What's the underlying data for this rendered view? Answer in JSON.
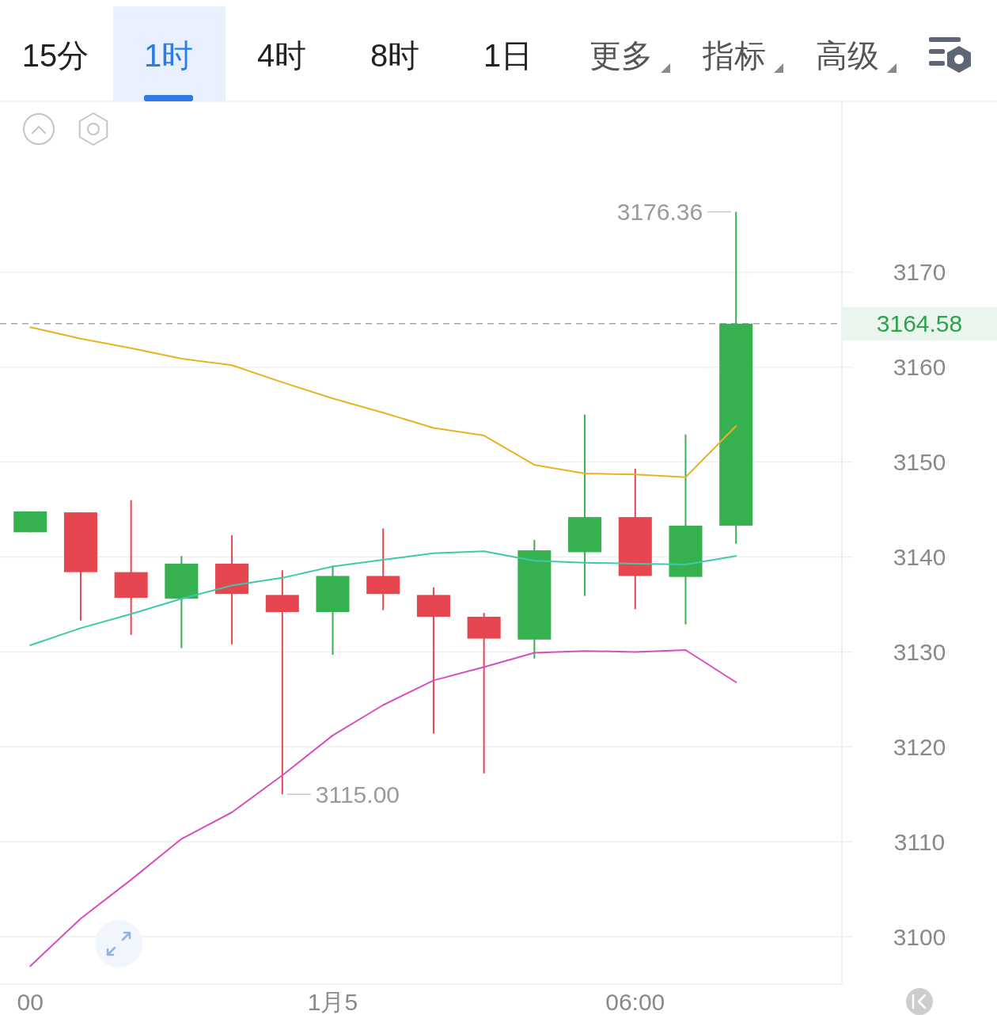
{
  "chart_data": {
    "type": "candlestick",
    "x": [
      "--01-04T18:00",
      "--01-04T19:00",
      "--01-04T20:00",
      "--01-04T21:00",
      "--01-04T22:00",
      "--01-04T23:00",
      "--01-05T00:00",
      "--01-05T01:00",
      "--01-05T02:00",
      "--01-05T03:00",
      "--01-05T04:00",
      "--01-05T05:00",
      "--01-05T06:00",
      "--01-05T07:00",
      "--01-05T08:00"
    ],
    "ohlc": [
      [
        3142.6,
        3144.8,
        3142.6,
        3144.8
      ],
      [
        3144.7,
        3144.7,
        3133.3,
        3138.4
      ],
      [
        3138.4,
        3146.0,
        3131.8,
        3135.7
      ],
      [
        3135.6,
        3140.1,
        3130.4,
        3139.3
      ],
      [
        3139.3,
        3142.3,
        3130.8,
        3136.1
      ],
      [
        3136.0,
        3138.6,
        3115.0,
        3134.2
      ],
      [
        3134.2,
        3139.1,
        3129.7,
        3138.0
      ],
      [
        3138.0,
        3143.0,
        3134.4,
        3136.1
      ],
      [
        3136.0,
        3136.8,
        3121.4,
        3133.7
      ],
      [
        3133.7,
        3134.1,
        3117.2,
        3131.4
      ],
      [
        3131.3,
        3141.8,
        3129.3,
        3140.7
      ],
      [
        3140.5,
        3155.0,
        3135.9,
        3144.2
      ],
      [
        3144.2,
        3149.3,
        3134.5,
        3138.0
      ],
      [
        3137.9,
        3152.9,
        3132.9,
        3143.3
      ],
      [
        3143.3,
        3176.36,
        3141.4,
        3164.58
      ]
    ],
    "colors": [
      "#36b150",
      "#e5464f",
      "#e5464f",
      "#36b150",
      "#e5464f",
      "#e5464f",
      "#36b150",
      "#e5464f",
      "#e5464f",
      "#e5464f",
      "#36b150",
      "#36b150",
      "#e5464f",
      "#36b150",
      "#36b150"
    ],
    "series": [
      {
        "type": "line",
        "color": "#e8b320",
        "values": [
          3164.2,
          3163.0,
          3162.0,
          3160.9,
          3160.2,
          3158.4,
          3156.7,
          3155.2,
          3153.6,
          3152.8,
          3149.7,
          3148.8,
          3148.7,
          3148.4,
          3153.8
        ]
      },
      {
        "type": "line",
        "color": "#3ec9aa",
        "values": [
          3130.7,
          3132.5,
          3134.0,
          3135.6,
          3137.0,
          3137.8,
          3139.0,
          3139.7,
          3140.4,
          3140.6,
          3139.6,
          3139.4,
          3139.3,
          3139.2,
          3140.1
        ]
      },
      {
        "type": "line",
        "color": "#d64fbd",
        "values": [
          3096.9,
          3101.9,
          3106.0,
          3110.3,
          3113.1,
          3117.0,
          3121.2,
          3124.4,
          3127.0,
          3128.4,
          3129.9,
          3130.1,
          3130.0,
          3130.2,
          3126.8
        ]
      }
    ],
    "xlim": [
      "--01-04T17:24",
      "--01-05T10:06"
    ],
    "xticks": [
      {
        "value": "--01-04T18:00",
        "label": "00"
      },
      {
        "value": "--01-05T00:00",
        "label": "1月5"
      },
      {
        "value": "--01-05T06:00",
        "label": "06:00"
      }
    ],
    "ylim": [
      3095,
      3188
    ],
    "yticks": [
      3100,
      3110,
      3120,
      3130,
      3140,
      3150,
      3160,
      3170
    ],
    "grid": "y",
    "ref_lines": [
      {
        "axis": "y",
        "value": 3164.58,
        "label": "3164.58",
        "color": "#a8a8a8",
        "line_style": "dashed"
      }
    ],
    "annotations": [
      "15分",
      "1时",
      "4时",
      "8时",
      "1日",
      "更多",
      "指标",
      "高级",
      {
        "text": "3176.36",
        "x": "--01-05T08:00",
        "y": 3176.36
      },
      {
        "text": "3115.00",
        "x": "--01-04T23:00",
        "y": 3115.0
      }
    ]
  }
}
